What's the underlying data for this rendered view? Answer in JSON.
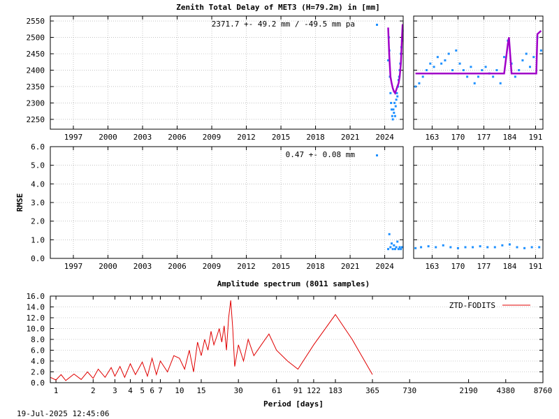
{
  "timestamp": "19-Jul-2025 12:45:06",
  "colors": {
    "ztd": "#1e90ff",
    "mean": "#a000c8",
    "spectrum": "#e00000",
    "frame": "#000000",
    "grid": "#a0a0a0"
  },
  "chart_data": [
    {
      "id": "ztd-long",
      "type": "scatter",
      "title": "Zenith Total Delay of MET3 (H=79.2m) in [mm]",
      "annotation": "2371.7 +-  49.2 mm / -49.5 mm pa",
      "xlim": [
        1995,
        2025.6
      ],
      "ylim": [
        2220,
        2565
      ],
      "x_ticks": [
        1997,
        2000,
        2003,
        2006,
        2009,
        2012,
        2015,
        2018,
        2021,
        2024
      ],
      "y_ticks": [
        2250,
        2300,
        2350,
        2400,
        2450,
        2500,
        2550
      ],
      "series": [
        {
          "name": "ZTD",
          "x": [
            2024.3,
            2024.35,
            2024.4,
            2024.45,
            2024.5,
            2024.55,
            2024.6,
            2024.65,
            2024.7,
            2024.75,
            2024.8,
            2024.85,
            2024.9,
            2024.95,
            2025.0,
            2025.05,
            2025.1,
            2025.15,
            2025.2,
            2025.25,
            2025.3,
            2025.35,
            2025.4,
            2025.45,
            2025.5,
            2025.55
          ],
          "y": [
            2430,
            2500,
            2460,
            2380,
            2330,
            2300,
            2280,
            2260,
            2250,
            2280,
            2270,
            2300,
            2260,
            2290,
            2310,
            2330,
            2320,
            2350,
            2370,
            2380,
            2400,
            2420,
            2450,
            2470,
            2490,
            2520
          ]
        },
        {
          "name": "mean",
          "x": [
            2024.3,
            2024.4,
            2024.5,
            2024.6,
            2024.7,
            2024.8,
            2024.9,
            2025.0,
            2025.1,
            2025.2,
            2025.3,
            2025.4,
            2025.5,
            2025.55
          ],
          "y": [
            2530,
            2440,
            2380,
            2360,
            2345,
            2335,
            2330,
            2340,
            2350,
            2360,
            2380,
            2420,
            2500,
            2540
          ]
        }
      ]
    },
    {
      "id": "ztd-recent",
      "type": "scatter",
      "xlim": [
        158,
        193
      ],
      "ylim": [
        2220,
        2565
      ],
      "x_ticks": [
        163,
        170,
        177,
        184,
        191
      ],
      "series": [
        {
          "name": "ZTD",
          "x": [
            158.5,
            159.5,
            160.5,
            161.5,
            162.5,
            163.5,
            164.5,
            165.5,
            166.5,
            167.5,
            168.5,
            169.5,
            170.5,
            171.5,
            172.5,
            173.5,
            174.5,
            175.5,
            176.5,
            177.5,
            178.5,
            179.5,
            180.5,
            181.5,
            182.5,
            183.5,
            184.5,
            185.5,
            186.5,
            187.5,
            188.5,
            189.5,
            190.5,
            191.5,
            192.5
          ],
          "y": [
            2350,
            2360,
            2380,
            2400,
            2420,
            2410,
            2440,
            2420,
            2430,
            2450,
            2400,
            2460,
            2420,
            2400,
            2380,
            2410,
            2360,
            2380,
            2400,
            2410,
            2390,
            2380,
            2400,
            2360,
            2440,
            2490,
            2420,
            2380,
            2400,
            2430,
            2450,
            2410,
            2440,
            2500,
            2460
          ]
        },
        {
          "name": "mean",
          "x": [
            158.5,
            182.5,
            183.5,
            183.8,
            184.5,
            191.2,
            191.5,
            192.5
          ],
          "y": [
            2390,
            2390,
            2480,
            2500,
            2390,
            2390,
            2510,
            2520
          ]
        }
      ]
    },
    {
      "id": "rmse-long",
      "type": "scatter",
      "ylabel": "RMSE",
      "annotation": "0.47 +-  0.08 mm",
      "xlim": [
        1995,
        2025.6
      ],
      "ylim": [
        0,
        6
      ],
      "x_ticks": [
        1997,
        2000,
        2003,
        2006,
        2009,
        2012,
        2015,
        2018,
        2021,
        2024
      ],
      "y_ticks": [
        0.0,
        1.0,
        2.0,
        3.0,
        4.0,
        5.0,
        6.0
      ],
      "series": [
        {
          "name": "RMSE",
          "x": [
            2024.3,
            2024.4,
            2024.5,
            2024.6,
            2024.7,
            2024.8,
            2024.9,
            2025.0,
            2025.1,
            2025.2,
            2025.3,
            2025.4,
            2025.5
          ],
          "y": [
            0.5,
            1.3,
            0.6,
            0.8,
            0.5,
            0.7,
            0.5,
            0.6,
            0.9,
            0.5,
            0.6,
            0.5,
            0.6
          ]
        }
      ]
    },
    {
      "id": "rmse-recent",
      "type": "scatter",
      "xlim": [
        158,
        193
      ],
      "ylim": [
        0,
        6
      ],
      "x_ticks": [
        163,
        170,
        177,
        184,
        191
      ],
      "series": [
        {
          "name": "RMSE",
          "x": [
            158.5,
            160,
            162,
            164,
            166,
            168,
            170,
            172,
            174,
            176,
            178,
            180,
            182,
            184,
            186,
            188,
            190,
            192
          ],
          "y": [
            0.55,
            0.6,
            0.65,
            0.6,
            0.7,
            0.6,
            0.55,
            0.6,
            0.6,
            0.65,
            0.6,
            0.6,
            0.7,
            0.75,
            0.6,
            0.55,
            0.6,
            0.6
          ]
        }
      ]
    },
    {
      "id": "spectrum",
      "type": "line",
      "title": "Amplitude spectrum (8011 samples)",
      "xlabel": "Period [days]",
      "xscale": "log",
      "xlim": [
        0.9,
        8760
      ],
      "ylim": [
        0,
        16
      ],
      "y_ticks": [
        0.0,
        2.0,
        4.0,
        6.0,
        8.0,
        10.0,
        12.0,
        14.0,
        16.0
      ],
      "x_tick_labels": [
        "1",
        "2",
        "3",
        "4",
        "5",
        "6",
        "7",
        "10",
        "15",
        "30",
        "61",
        "91",
        "122",
        "183",
        "365",
        "730",
        "2190",
        "4380",
        "8760"
      ],
      "x_tick_values": [
        1,
        2,
        3,
        4,
        5,
        6,
        7,
        10,
        15,
        30,
        61,
        91,
        122,
        183,
        365,
        730,
        2190,
        4380,
        8760
      ],
      "legend": "top-right",
      "series": [
        {
          "name": "ZTD-FODITS",
          "x": [
            0.9,
            1.0,
            1.1,
            1.2,
            1.4,
            1.6,
            1.8,
            2.0,
            2.2,
            2.5,
            2.8,
            3.0,
            3.3,
            3.6,
            4.0,
            4.4,
            5.0,
            5.5,
            6.0,
            6.5,
            7.0,
            8.0,
            9.0,
            10.0,
            11.0,
            12.0,
            13.0,
            14.0,
            15.0,
            16.0,
            17.0,
            18.0,
            19.0,
            20.0,
            21.0,
            22.0,
            23.0,
            24.0,
            25.0,
            26.0,
            27.0,
            28.0,
            30.0,
            33.0,
            36.0,
            40.0,
            46.0,
            53.0,
            61.0,
            75.0,
            91.0,
            122.0,
            183.0,
            250.0,
            365.0
          ],
          "y": [
            1.0,
            0.5,
            1.5,
            0.4,
            1.6,
            0.6,
            2.0,
            0.8,
            2.5,
            1.0,
            2.8,
            1.2,
            3.0,
            1.0,
            3.5,
            1.5,
            3.8,
            1.2,
            4.5,
            1.5,
            4.0,
            2.0,
            5.0,
            4.5,
            2.5,
            6.0,
            2.0,
            7.5,
            5.0,
            8.0,
            6.0,
            9.5,
            7.0,
            8.5,
            10.0,
            7.5,
            10.5,
            6.0,
            12.0,
            15.2,
            10.0,
            3.0,
            7.0,
            4.0,
            8.0,
            5.0,
            7.0,
            9.0,
            6.0,
            4.0,
            2.5,
            7.0,
            12.6,
            8.0,
            1.5
          ]
        }
      ]
    }
  ]
}
